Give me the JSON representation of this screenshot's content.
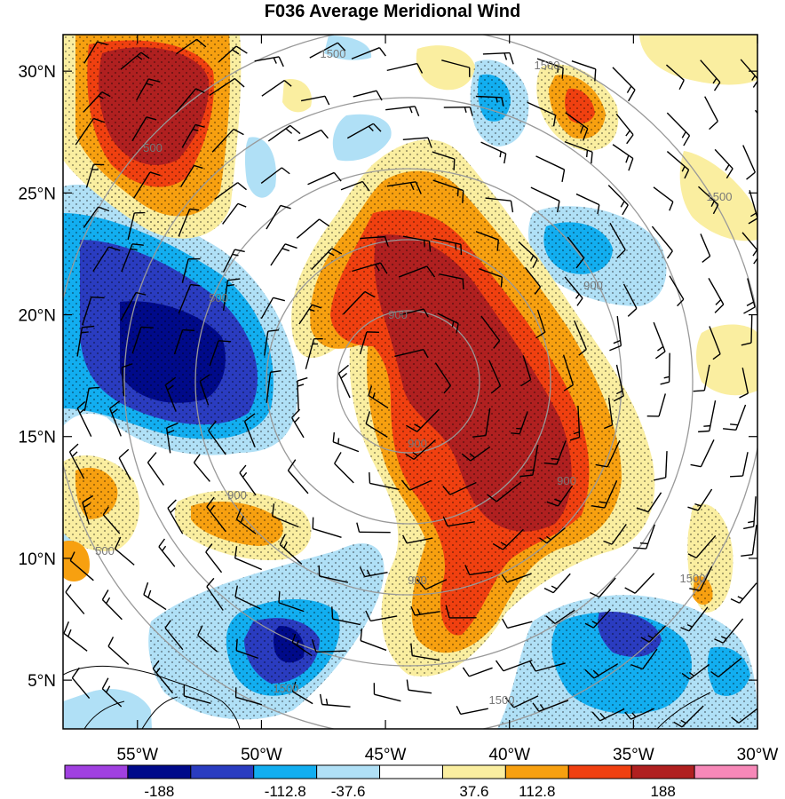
{
  "chart_data": {
    "type": "heatmap",
    "title": "F036 Average Meridional Wind",
    "x_ticks": [
      "55°W",
      "50°W",
      "45°W",
      "40°W",
      "35°W",
      "30°W"
    ],
    "y_ticks": [
      "30°N",
      "25°N",
      "20°N",
      "15°N",
      "10°N",
      "5°N"
    ],
    "x_values": [
      -55,
      -50,
      -45,
      -40,
      -35,
      -30
    ],
    "y_values": [
      30,
      25,
      20,
      15,
      10,
      5
    ],
    "xlim": [
      -58,
      -30
    ],
    "ylim": [
      3,
      31.5
    ],
    "colorbar": {
      "labels": [
        "-188",
        "-112.8",
        "-37.6",
        "37.6",
        "112.8",
        "188"
      ],
      "colors": [
        "#a040e0",
        "#000a8a",
        "#2a3cc0",
        "#12aef0",
        "#b0e0f6",
        "#ffffff",
        "#faeea0",
        "#f7a010",
        "#f04010",
        "#b02020",
        "#f788b8"
      ]
    },
    "range_ring_labels": [
      {
        "text": "1500"
      },
      {
        "text": "1500"
      },
      {
        "text": "1500"
      },
      {
        "text": "1500"
      },
      {
        "text": "1500"
      },
      {
        "text": "1500"
      },
      {
        "text": "500"
      },
      {
        "text": "900"
      },
      {
        "text": "900"
      },
      {
        "text": "900"
      },
      {
        "text": "900"
      },
      {
        "text": "900"
      },
      {
        "text": "900"
      },
      {
        "text": "500"
      },
      {
        "text": "500"
      }
    ]
  }
}
